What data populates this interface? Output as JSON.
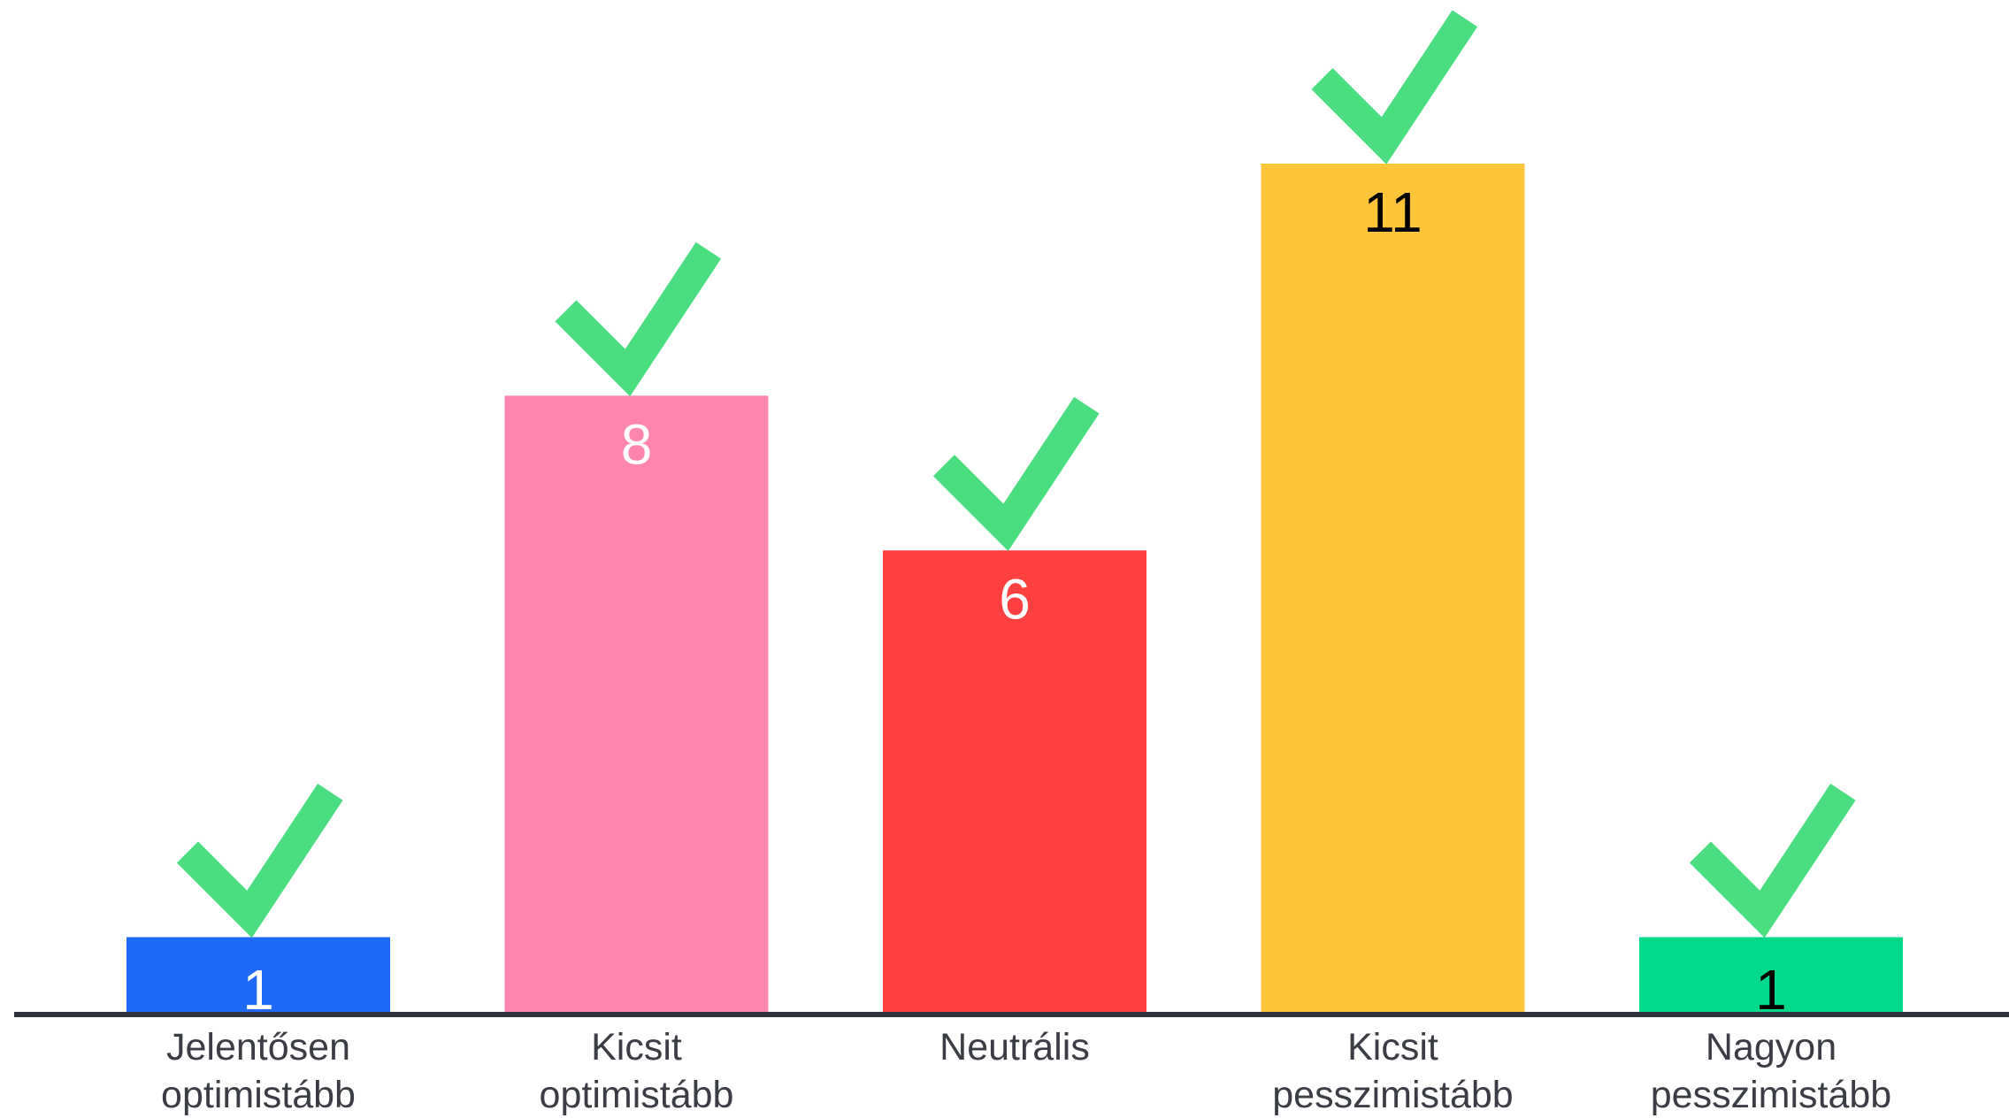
{
  "chart_data": {
    "type": "bar",
    "categories": [
      [
        "Jelentősen",
        "optimistább"
      ],
      [
        "Kicsit",
        "optimistább"
      ],
      [
        "Neutrális"
      ],
      [
        "Kicsit",
        "pesszimistább"
      ],
      [
        "Nagyon",
        "pesszimistább"
      ]
    ],
    "values": [
      1,
      8,
      6,
      11,
      1
    ],
    "value_labels": [
      "1",
      "8",
      "6",
      "11",
      "1"
    ],
    "bar_colors": [
      "#1e6af6",
      "#ff85ad",
      "#ff4040",
      "#ffc53a",
      "#00d98a"
    ],
    "label_colors": [
      "#ffffff",
      "#ffffff",
      "#ffffff",
      "#000000",
      "#000000"
    ],
    "checkmark_color": "#4ade80",
    "checkmark_icon": "checkmark-icon",
    "axis_color": "#2e333d",
    "xlabel": "",
    "ylabel": "",
    "ylim": [
      0,
      11
    ],
    "grid": false,
    "legend": "none"
  }
}
